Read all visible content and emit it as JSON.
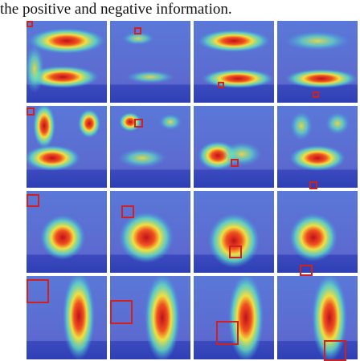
{
  "body": {
    "text": "the positive and negative information."
  }
}
